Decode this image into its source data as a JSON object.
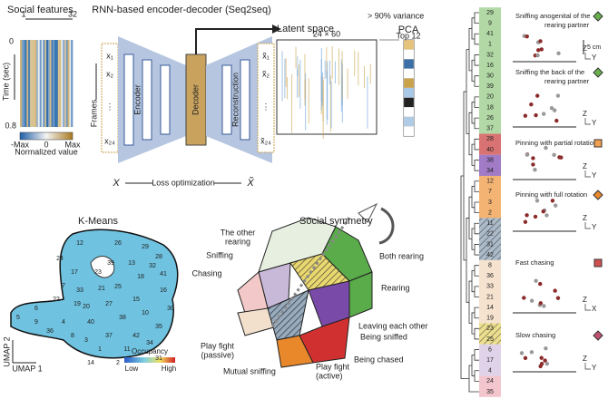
{
  "social_features": {
    "title": "Social features",
    "x_start": "1",
    "x_end": "32",
    "y_label": "Time (sec)",
    "y_start": "0",
    "y_end": "0.8",
    "colorbar": [
      "-Max",
      "0",
      "Max"
    ],
    "colorbar_label": "Normalized value"
  },
  "seq2seq": {
    "title": "RNN-based encoder-decoder (Seq2seq)",
    "frames": "Frames",
    "inputs": [
      "x₁",
      "x₂",
      "⋮",
      "x₂₄"
    ],
    "encoder": "Encoder",
    "decoder": "Decoder",
    "reconstruction": "Reconstruction",
    "outputs": [
      "x̃₁",
      "x̃₂",
      "⋮",
      "x̃₂₄"
    ],
    "loss_left": "X",
    "loss_label": "Loss optimization",
    "loss_right": "X̃"
  },
  "latent": {
    "title": "Latent space",
    "size": "24 × 60",
    "variance": "> 90% variance",
    "pca": "PCA",
    "top": "Top 12"
  },
  "kmeans": {
    "title": "K-Means",
    "clusters": [
      "12",
      "26",
      "29",
      "28",
      "41",
      "24",
      "17",
      "21",
      "25",
      "18",
      "7",
      "15",
      "16",
      "10",
      "20",
      "27",
      "38",
      "35",
      "40",
      "19",
      "22",
      "4",
      "3",
      "1",
      "37",
      "42",
      "34",
      "11",
      "13",
      "32",
      "30",
      "6",
      "5",
      "36",
      "8",
      "31",
      "2",
      "14",
      "33",
      "39",
      "23",
      "9"
    ],
    "y_axis": "UMAP 2",
    "x_axis": "UMAP 1",
    "legend_title": "Occupancy",
    "low": "Low",
    "high": "High"
  },
  "symmetry": {
    "title": "Social symmetry",
    "regions": [
      [
        "The other",
        "rearing"
      ],
      [
        "Sniffing"
      ],
      [
        "Chasing"
      ],
      [
        "Both rearing"
      ],
      [
        "Rearing"
      ],
      [
        "Leaving each other"
      ],
      [
        "Being sniffed"
      ],
      [
        "Being chased"
      ],
      [
        "Play fight",
        "(passive)"
      ],
      [
        "Mutual sniffing"
      ],
      [
        "Play fight",
        "(active)"
      ]
    ]
  },
  "dendrogram": {
    "leaves": [
      "29",
      "9",
      "41",
      "1",
      "32",
      "16",
      "30",
      "39",
      "20",
      "18",
      "26",
      "37",
      "28",
      "40",
      "38",
      "34",
      "12",
      "7",
      "3",
      "2",
      "11",
      "22",
      "31",
      "42",
      "8",
      "36",
      "33",
      "21",
      "14",
      "19",
      "23",
      "25",
      "6",
      "17",
      "4",
      "24",
      "35"
    ],
    "behaviors": [
      [
        "Sniffing anogenital of the",
        "rearing partner"
      ],
      [
        "Sniffing the back of the",
        "rearing partner"
      ],
      [
        "Pinning with partial rotation"
      ],
      [
        "Pinning with full rotation"
      ],
      [
        "Fast chasing"
      ],
      [
        "Slow chasing"
      ]
    ],
    "scale": "5 cm",
    "axis_z": "Z",
    "axis_y": "Y",
    "axis_x": "X"
  }
}
